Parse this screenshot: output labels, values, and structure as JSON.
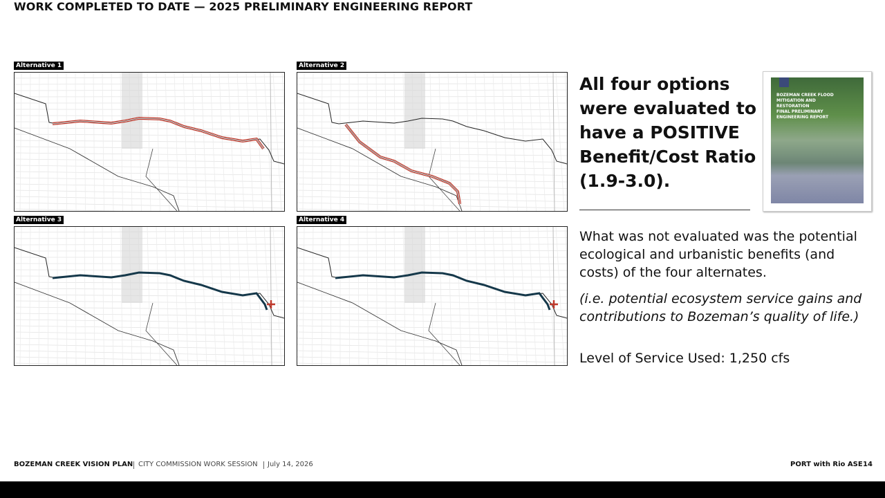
{
  "header": {
    "title": "WORK COMPLETED TO DATE — 2025 PRELIMINARY ENGINEERING REPORT"
  },
  "maps": [
    {
      "label": "Alternative 1"
    },
    {
      "label": "Alternative 2"
    },
    {
      "label": "Alternative 3"
    },
    {
      "label": "Alternative 4"
    }
  ],
  "cover": {
    "title": "BOZEMAN CREEK FLOOD MITIGATION AND RESTORATION",
    "subtitle": "FINAL PRELIMINARY ENGINEERING REPORT"
  },
  "body": {
    "heading": "All four options were evaluated to have a POSITIVE Benefit/Cost Ratio (1.9-3.0).",
    "paragraph": "What was not evaluated was the potential ecological and urbanistic benefits (and costs) of the four alternates.",
    "note": "(i.e. potential ecosystem service gains and contributions to Bozeman’s quality of life.)",
    "level_of_service": "Level of Service Used: 1,250 cfs"
  },
  "footer": {
    "project": "BOZEMAN CREEK VISION PLAN",
    "session": "CITY COMMISSION WORK SESSION",
    "date": "July 14, 2026",
    "credit": "PORT with Rio ASE",
    "page": "14"
  }
}
